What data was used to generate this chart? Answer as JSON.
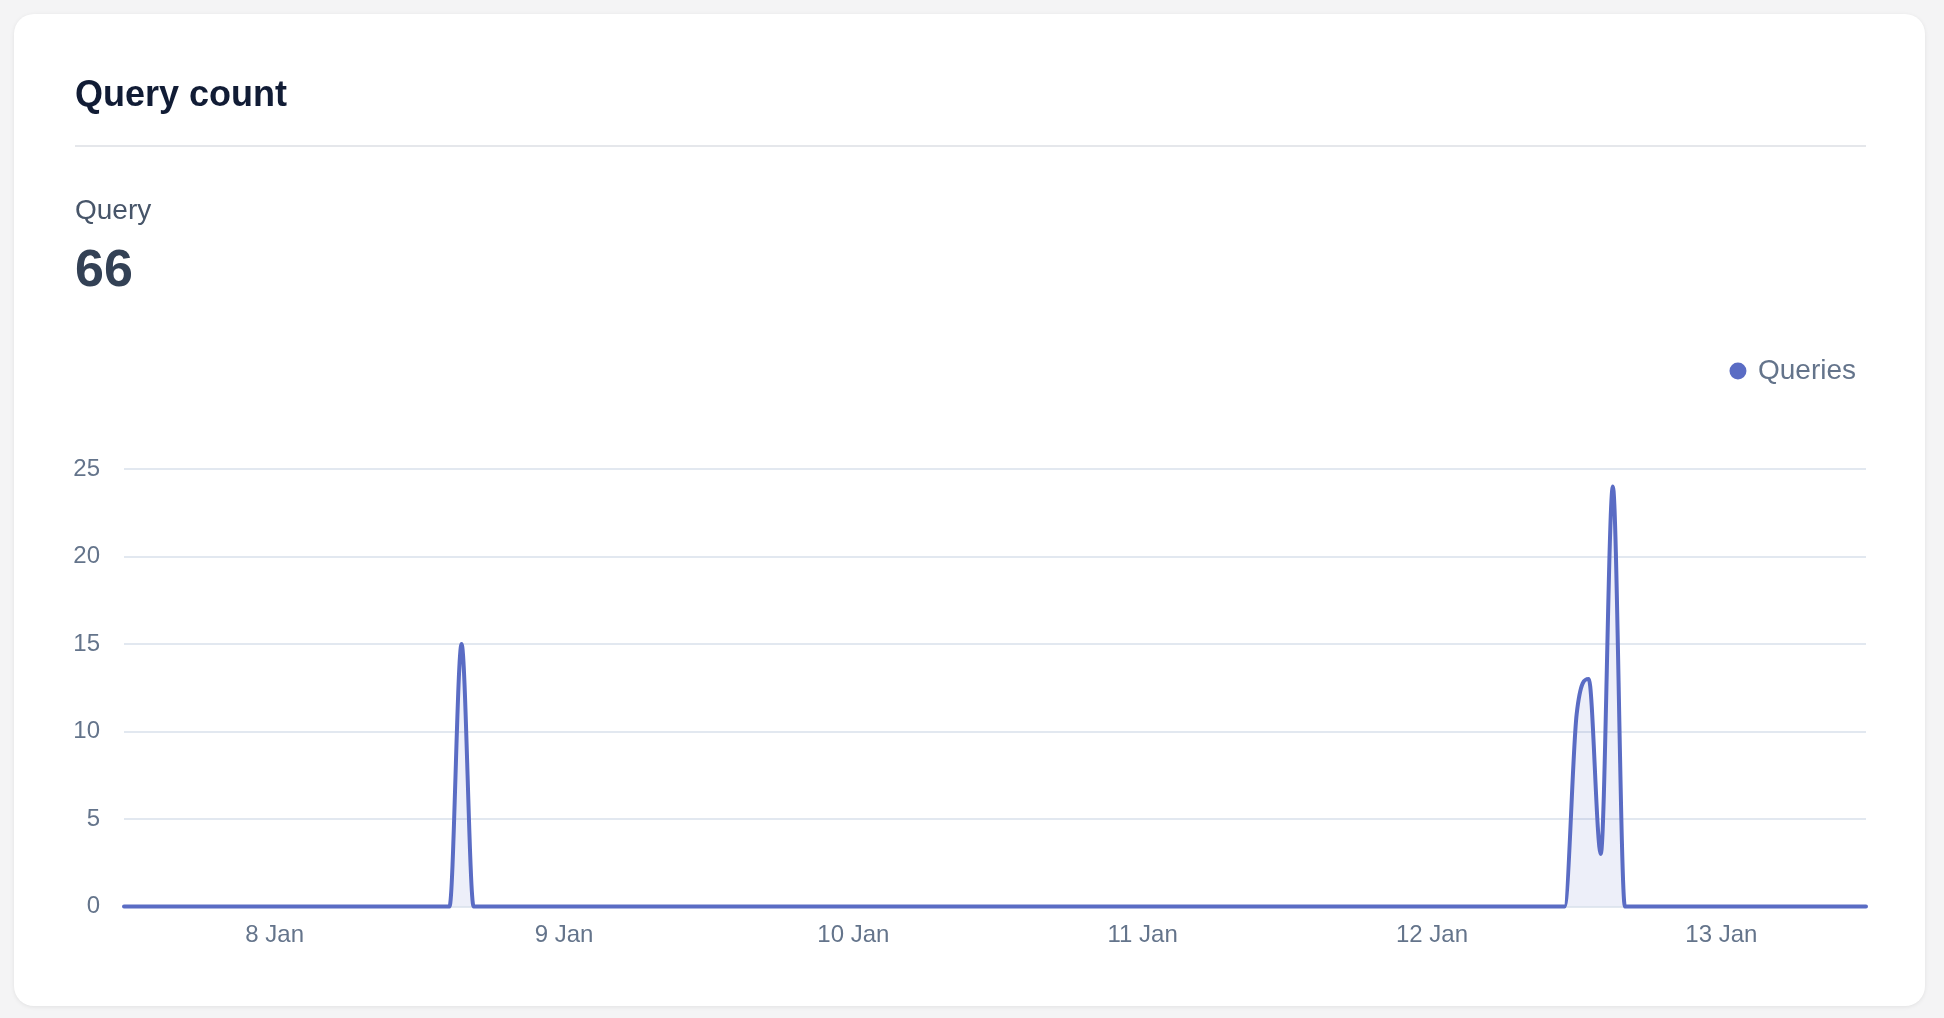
{
  "chart_data": {
    "type": "area",
    "title": "Query count",
    "subtitle": "Query",
    "annotations": [
      "66"
    ],
    "x": [
      "--01-07T11:30",
      "--01-08T14:30",
      "--01-08T15:30",
      "--01-08T16:30",
      "--01-12T11:00",
      "--01-12T12:00",
      "--01-12T13:00",
      "--01-12T14:00",
      "--01-12T15:00",
      "--01-12T16:00",
      "--01-13T12:00"
    ],
    "series": [
      {
        "name": "Queries",
        "color": "#5a6cc4",
        "values": [
          0,
          0,
          15,
          0,
          0,
          11,
          13,
          3,
          24,
          0,
          0
        ]
      }
    ],
    "xlim": [
      "--01-07T11:30",
      "--01-13T12:00"
    ],
    "xticks": [
      {
        "value": "--01-08",
        "label": "8 Jan"
      },
      {
        "value": "--01-09",
        "label": "9 Jan"
      },
      {
        "value": "--01-10",
        "label": "10 Jan"
      },
      {
        "value": "--01-11",
        "label": "11 Jan"
      },
      {
        "value": "--01-12",
        "label": "12 Jan"
      },
      {
        "value": "--01-13",
        "label": "13 Jan"
      }
    ],
    "ylim": [
      0,
      25
    ],
    "yticks": [
      0,
      5,
      10,
      15,
      20,
      25
    ],
    "grid": "y",
    "legend": "top right"
  }
}
